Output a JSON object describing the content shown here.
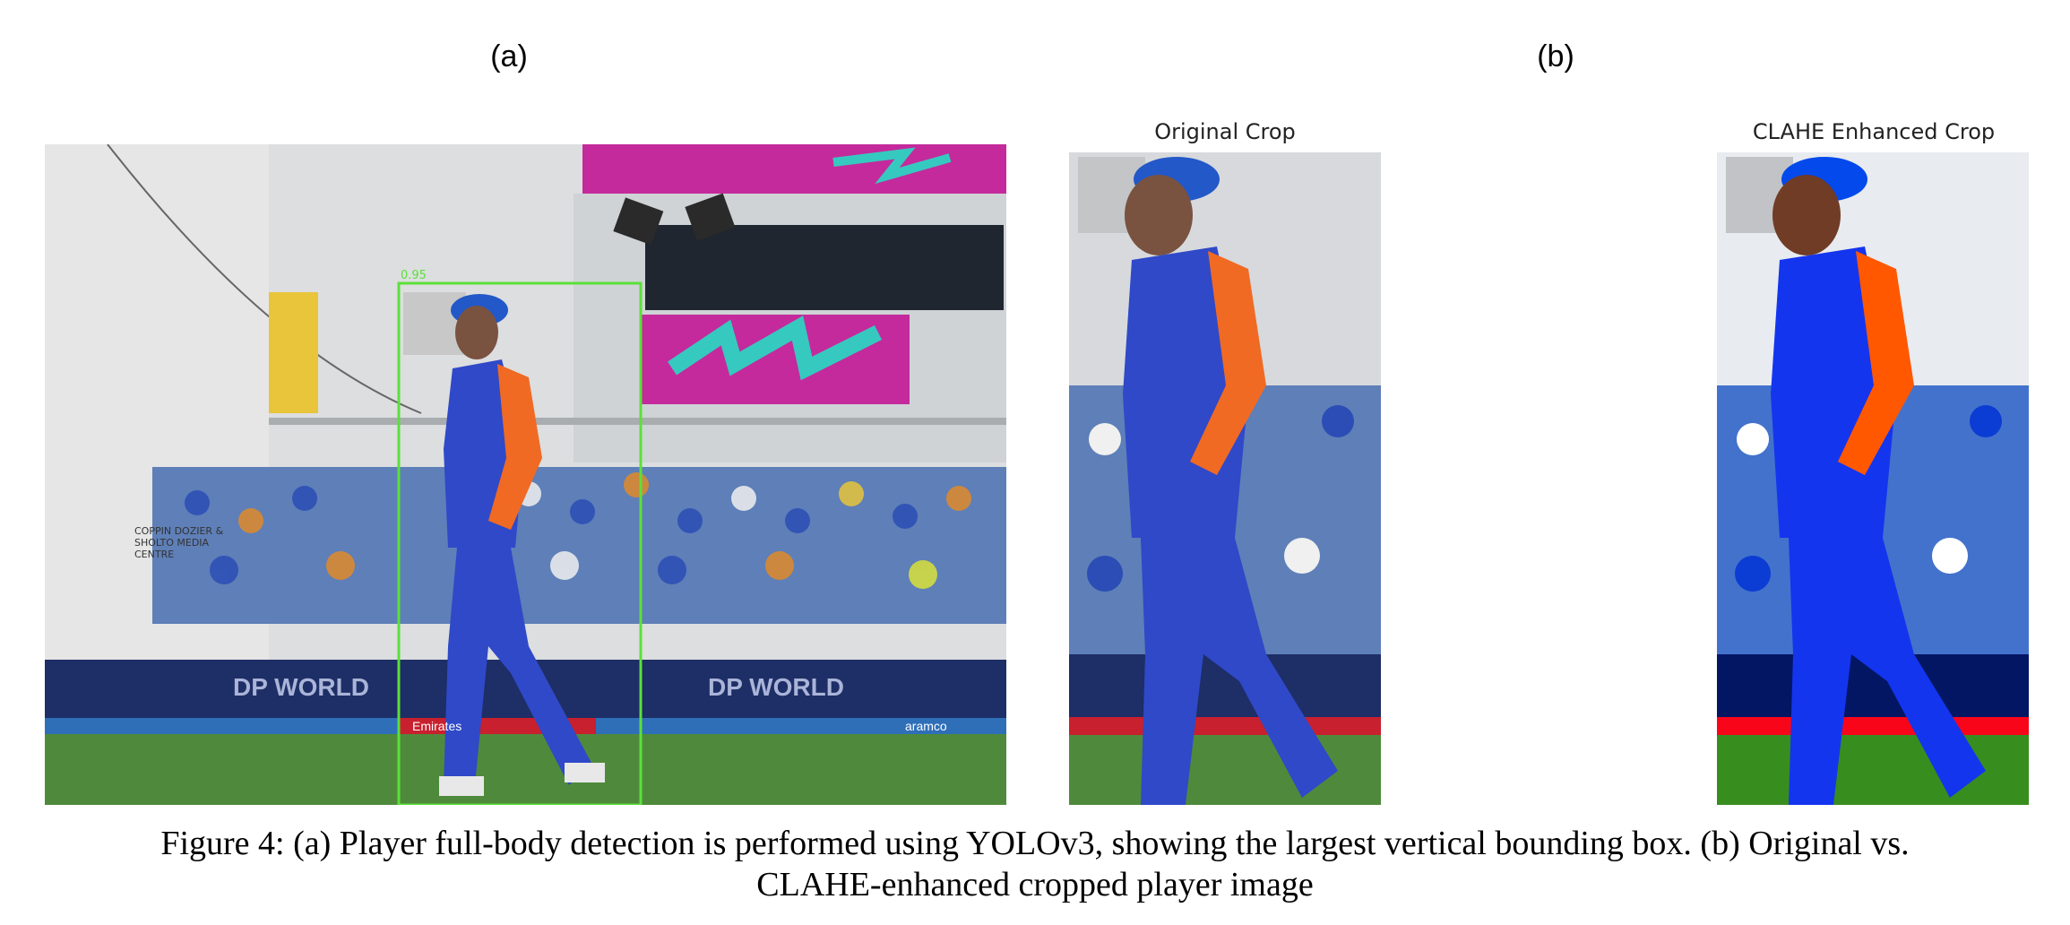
{
  "panels": {
    "a": {
      "label": "(a)",
      "bbox_score": "0.95"
    },
    "b": {
      "label": "(b)"
    }
  },
  "crops": {
    "original": {
      "title": "Original Crop"
    },
    "clahe": {
      "title": "CLAHE Enhanced Crop"
    }
  },
  "scene_text": {
    "media_sign": "COPPIN DOZIER & SHOLTO MEDIA CENTRE",
    "board_1": "DP WORLD",
    "board_2": "aramco",
    "board_3": "Emirates"
  },
  "caption": {
    "line1": "Figure 4: (a) Player full-body detection is performed using YOLOv3, showing the largest vertical bounding box. (b) Original vs.",
    "line2": "CLAHE-enhanced cropped player image"
  },
  "colors": {
    "bbox": "#5be03a",
    "jersey_blue": "#2f49c8",
    "sleeve_orange": "#f06a24",
    "grass": "#4f8a3c",
    "sky_wall": "#d7d9dc",
    "banner_magenta": "#c42a9c"
  }
}
